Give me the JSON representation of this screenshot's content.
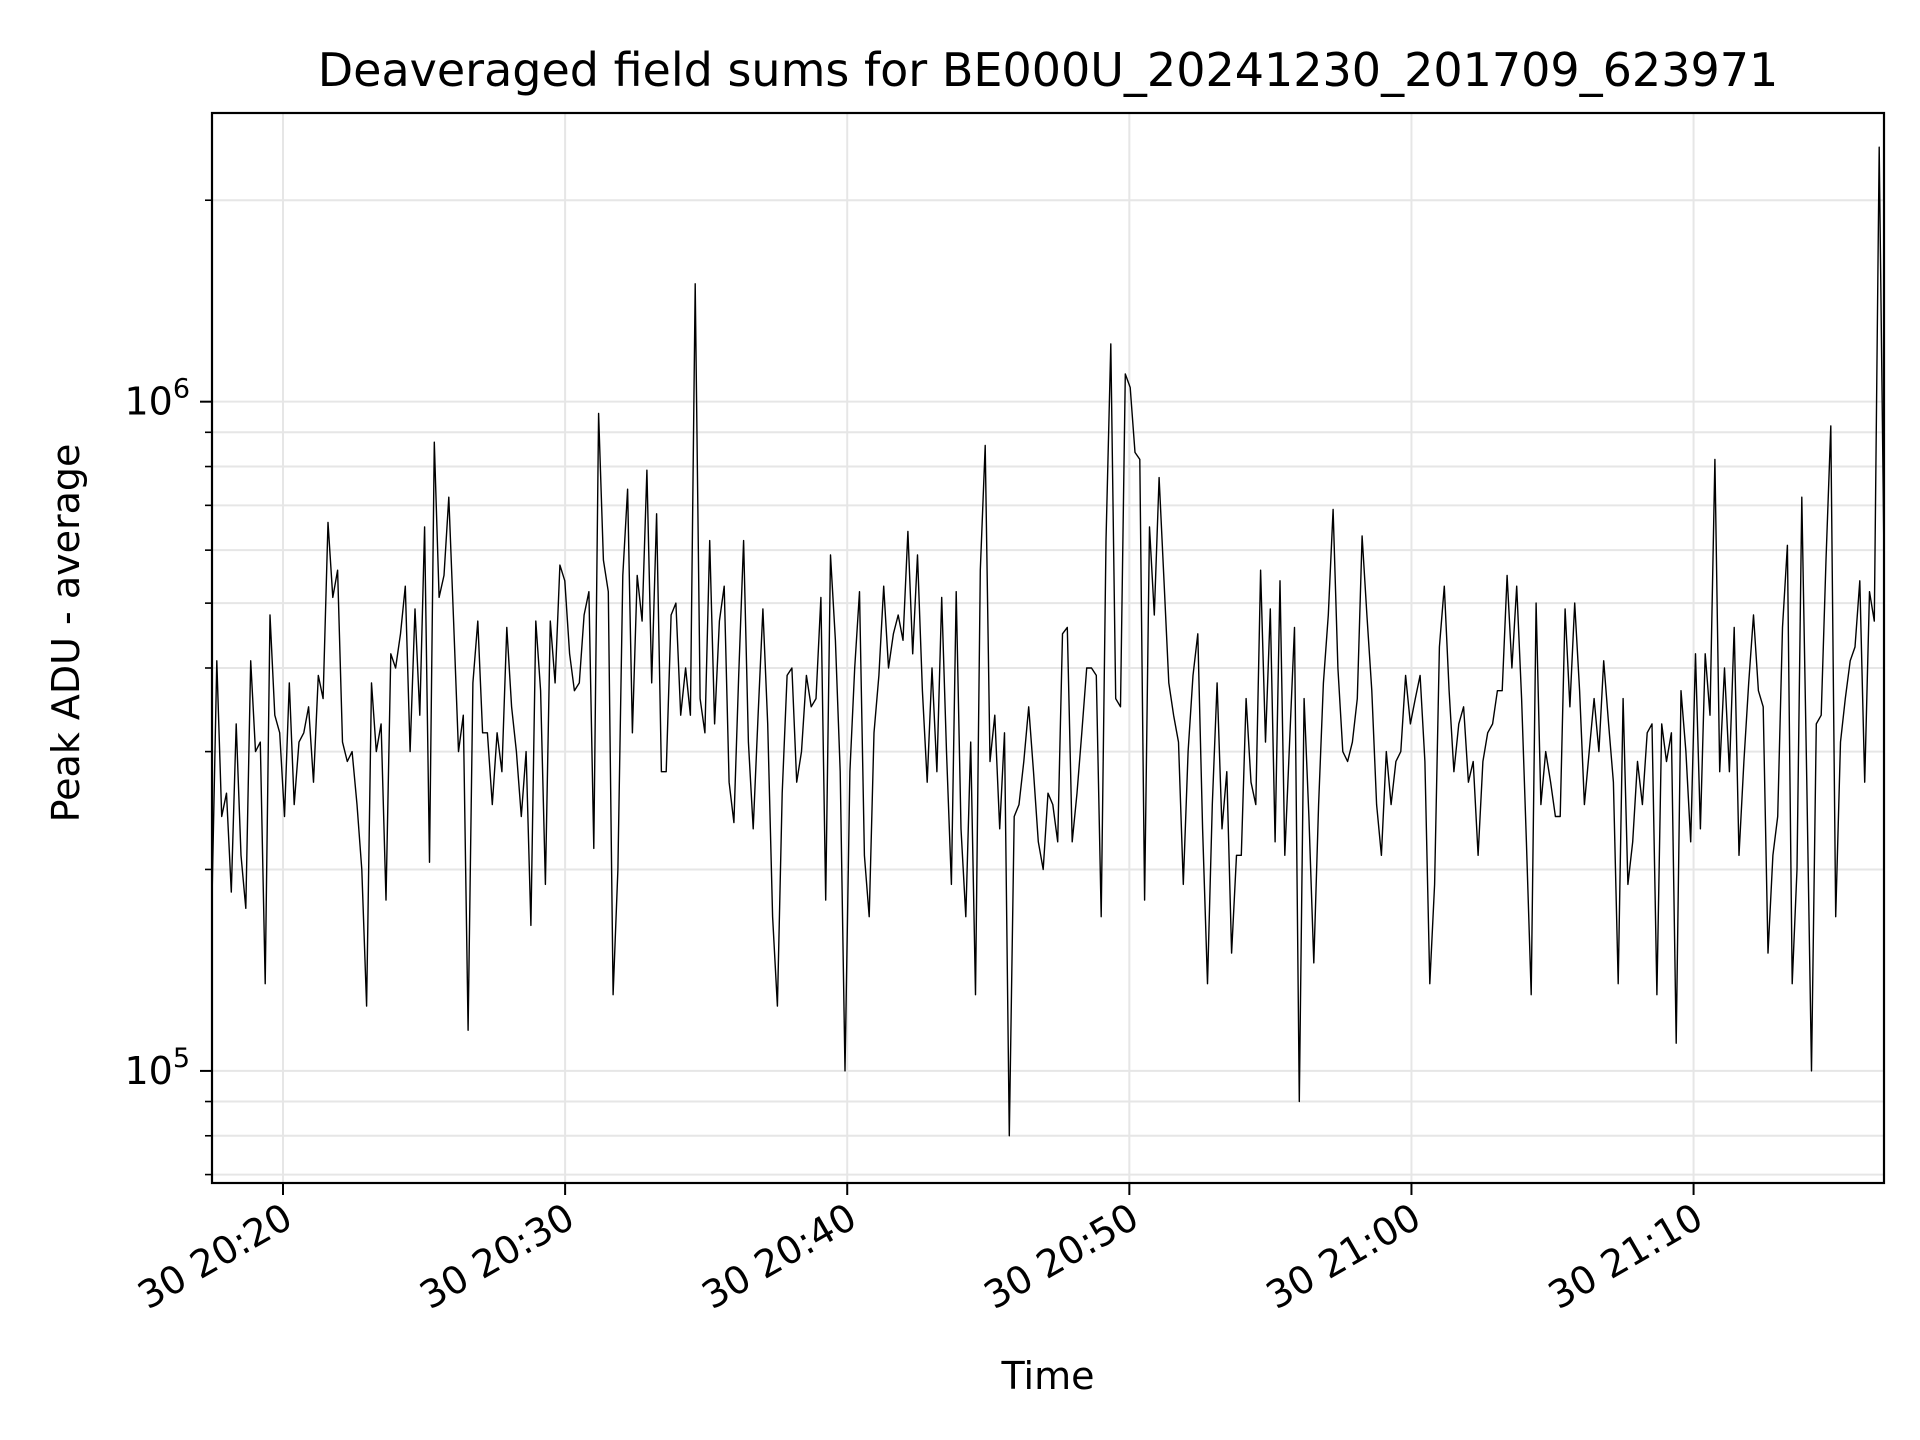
{
  "chart_data": {
    "type": "line",
    "title": "Deaveraged field sums for BE000U_20241230_201709_623971",
    "xlabel": "Time",
    "ylabel": "Peak ADU - average",
    "yscale": "log",
    "ylim": [
      68000,
      2700000
    ],
    "xlim": [
      "2024-12-30 20:17:29",
      "2024-12-30 21:16:45"
    ],
    "grid": true,
    "x_ticks": [
      {
        "value": "2024-12-30 20:20",
        "label": "30 20:20"
      },
      {
        "value": "2024-12-30 20:30",
        "label": "30 20:30"
      },
      {
        "value": "2024-12-30 20:40",
        "label": "30 20:40"
      },
      {
        "value": "2024-12-30 20:50",
        "label": "30 20:50"
      },
      {
        "value": "2024-12-30 21:00",
        "label": "30 21:00"
      },
      {
        "value": "2024-12-30 21:10",
        "label": "30 21:10"
      }
    ],
    "y_ticks": [
      {
        "value": 100000,
        "base": "10",
        "exp": "5"
      },
      {
        "value": 1000000,
        "base": "10",
        "exp": "6"
      }
    ],
    "x_start": "2024-12-30 20:17:29",
    "x_end": "2024-12-30 21:16:45",
    "color": "#000000",
    "series": [
      {
        "values": [
          180000,
          410000,
          240000,
          260000,
          185000,
          330000,
          210000,
          175000,
          410000,
          300000,
          310000,
          135000,
          480000,
          340000,
          320000,
          240000,
          380000,
          250000,
          310000,
          320000,
          350000,
          270000,
          390000,
          360000,
          660000,
          510000,
          560000,
          310000,
          290000,
          300000,
          250000,
          200000,
          125000,
          380000,
          300000,
          330000,
          180000,
          420000,
          400000,
          450000,
          530000,
          300000,
          490000,
          340000,
          650000,
          205000,
          870000,
          510000,
          550000,
          720000,
          470000,
          300000,
          340000,
          115000,
          380000,
          470000,
          320000,
          320000,
          250000,
          320000,
          280000,
          460000,
          350000,
          300000,
          240000,
          300000,
          165000,
          470000,
          370000,
          190000,
          470000,
          380000,
          570000,
          540000,
          420000,
          370000,
          380000,
          480000,
          520000,
          215000,
          960000,
          580000,
          520000,
          130000,
          200000,
          550000,
          740000,
          320000,
          550000,
          470000,
          790000,
          380000,
          680000,
          280000,
          280000,
          480000,
          500000,
          340000,
          400000,
          340000,
          1500000,
          360000,
          320000,
          620000,
          330000,
          470000,
          530000,
          270000,
          235000,
          390000,
          620000,
          310000,
          230000,
          340000,
          490000,
          330000,
          170000,
          125000,
          260000,
          390000,
          400000,
          270000,
          300000,
          390000,
          350000,
          360000,
          510000,
          180000,
          590000,
          440000,
          280000,
          100000,
          280000,
          400000,
          520000,
          210000,
          170000,
          320000,
          390000,
          530000,
          400000,
          450000,
          480000,
          440000,
          640000,
          420000,
          590000,
          370000,
          270000,
          400000,
          280000,
          510000,
          300000,
          190000,
          520000,
          230000,
          170000,
          310000,
          130000,
          560000,
          860000,
          290000,
          340000,
          230000,
          320000,
          80000,
          240000,
          250000,
          290000,
          350000,
          280000,
          220000,
          200000,
          260000,
          250000,
          220000,
          450000,
          460000,
          220000,
          260000,
          320000,
          400000,
          400000,
          390000,
          170000,
          620000,
          1220000,
          360000,
          350000,
          1100000,
          1050000,
          840000,
          820000,
          180000,
          650000,
          480000,
          770000,
          540000,
          380000,
          340000,
          310000,
          190000,
          300000,
          390000,
          450000,
          230000,
          135000,
          250000,
          380000,
          230000,
          280000,
          150000,
          210000,
          210000,
          360000,
          270000,
          250000,
          560000,
          310000,
          490000,
          220000,
          540000,
          210000,
          310000,
          460000,
          90000,
          360000,
          240000,
          145000,
          250000,
          380000,
          480000,
          690000,
          400000,
          300000,
          290000,
          310000,
          360000,
          630000,
          480000,
          370000,
          250000,
          210000,
          300000,
          250000,
          290000,
          300000,
          390000,
          330000,
          360000,
          390000,
          290000,
          135000,
          190000,
          430000,
          530000,
          370000,
          280000,
          330000,
          350000,
          270000,
          290000,
          210000,
          290000,
          320000,
          330000,
          370000,
          370000,
          550000,
          400000,
          530000,
          360000,
          220000,
          130000,
          500000,
          250000,
          300000,
          270000,
          240000,
          240000,
          490000,
          350000,
          500000,
          370000,
          250000,
          300000,
          360000,
          300000,
          410000,
          330000,
          270000,
          135000,
          360000,
          190000,
          220000,
          290000,
          250000,
          320000,
          330000,
          130000,
          330000,
          290000,
          320000,
          110000,
          370000,
          300000,
          220000,
          420000,
          230000,
          420000,
          340000,
          820000,
          280000,
          400000,
          280000,
          460000,
          210000,
          290000,
          380000,
          480000,
          370000,
          350000,
          150000,
          210000,
          240000,
          460000,
          610000,
          135000,
          200000,
          720000,
          275000,
          100000,
          330000,
          340000,
          580000,
          920000,
          170000,
          310000,
          360000,
          410000,
          430000,
          540000,
          270000,
          520000,
          470000,
          2400000,
          580000
        ]
      }
    ]
  }
}
